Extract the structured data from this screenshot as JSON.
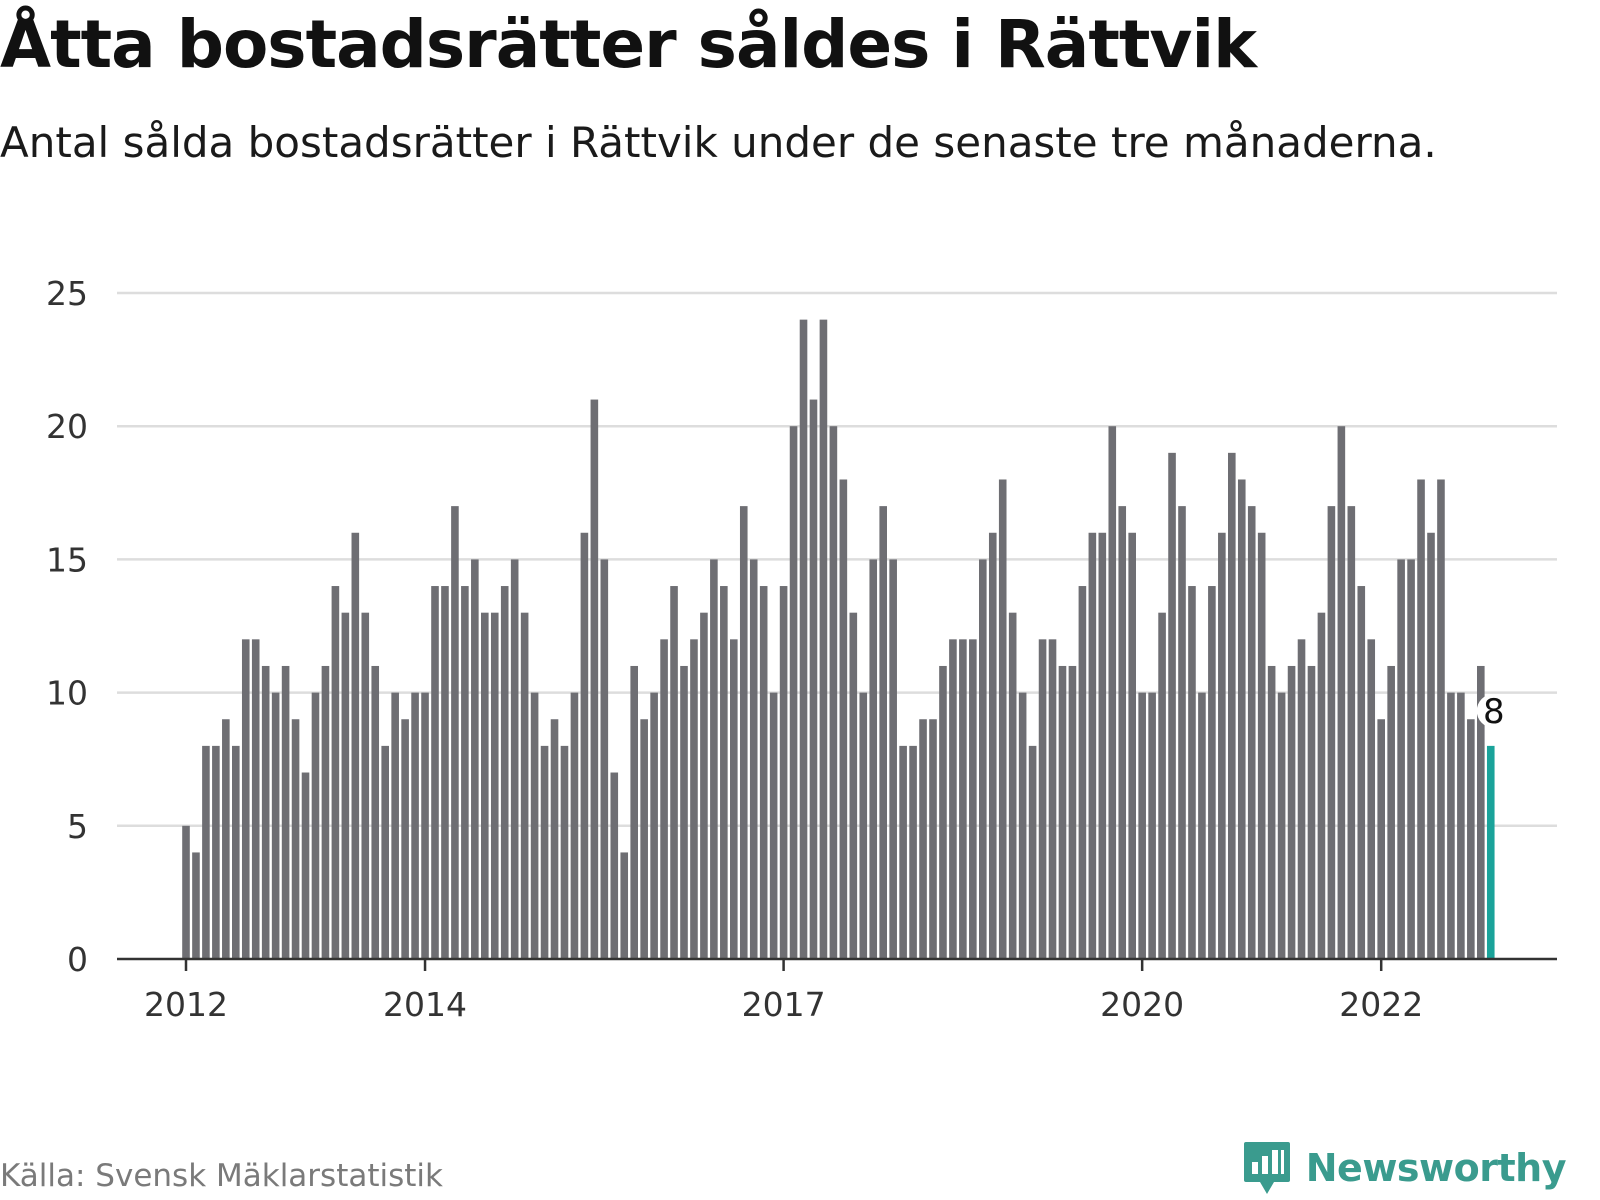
{
  "title": "Åtta bostadsrätter såldes i Rättvik",
  "subtitle": "Antal sålda bostadsrätter i Rättvik under de senaste tre månaderna.",
  "source": "Källa: Svensk Mäklarstatistik",
  "brand": {
    "name": "Newsworthy",
    "icon": "newsworthy-logo-icon",
    "color": "#3a9b8e"
  },
  "chart_data": {
    "type": "bar",
    "title": "Åtta bostadsrätter såldes i Rättvik",
    "subtitle": "Antal sålda bostadsrätter i Rättvik under de senaste tre månaderna.",
    "xlabel": "",
    "ylabel": "",
    "ylim": [
      0,
      25
    ],
    "yticks": [
      "0",
      "5",
      "10",
      "15",
      "20",
      "25"
    ],
    "xticks": [
      {
        "label": "2012",
        "index": 0
      },
      {
        "label": "2014",
        "index": 24
      },
      {
        "label": "2017",
        "index": 60
      },
      {
        "label": "2020",
        "index": 96
      },
      {
        "label": "2022",
        "index": 120
      }
    ],
    "grid": true,
    "bar_color": "#6e6e73",
    "highlight_color": "#1aa39a",
    "highlight_index": 131,
    "highlight_label": "8",
    "values": [
      5,
      4,
      8,
      8,
      9,
      8,
      12,
      12,
      11,
      10,
      11,
      9,
      7,
      10,
      11,
      14,
      13,
      16,
      13,
      11,
      8,
      10,
      9,
      10,
      10,
      14,
      14,
      17,
      14,
      15,
      13,
      13,
      14,
      15,
      13,
      10,
      8,
      9,
      8,
      10,
      16,
      21,
      15,
      7,
      4,
      11,
      9,
      10,
      12,
      14,
      11,
      12,
      13,
      15,
      14,
      12,
      17,
      15,
      14,
      10,
      14,
      20,
      24,
      21,
      24,
      20,
      18,
      13,
      10,
      15,
      17,
      15,
      8,
      8,
      9,
      9,
      11,
      12,
      12,
      12,
      15,
      16,
      18,
      13,
      10,
      8,
      12,
      12,
      11,
      11,
      14,
      16,
      16,
      20,
      17,
      16,
      10,
      10,
      13,
      19,
      17,
      14,
      10,
      14,
      16,
      19,
      18,
      17,
      16,
      11,
      10,
      11,
      12,
      11,
      13,
      17,
      20,
      17,
      14,
      12,
      9,
      11,
      15,
      15,
      18,
      16,
      18,
      10,
      10,
      9,
      11,
      8
    ]
  }
}
